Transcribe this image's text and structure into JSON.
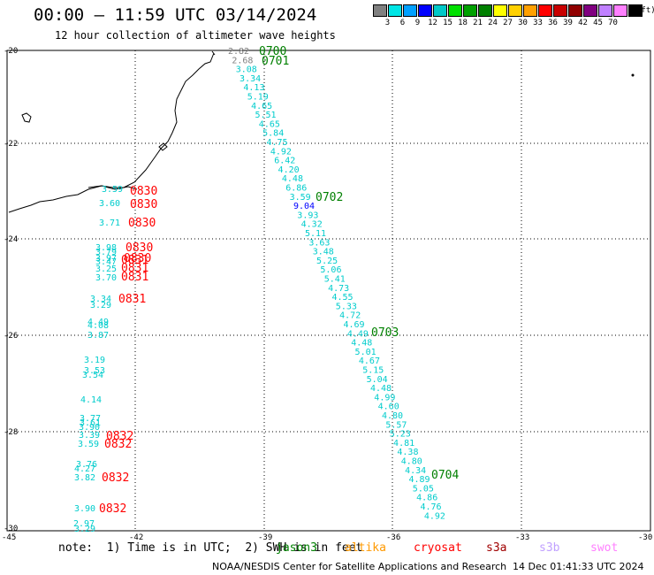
{
  "header": {
    "title": "00:00 – 11:59 UTC 03/14/2024",
    "subtitle": "12 hour collection of altimeter wave heights"
  },
  "legend": {
    "unit": "(ft)",
    "colors": [
      "#808080",
      "#00e5e5",
      "#00a0ff",
      "#0000ff",
      "#00c8c8",
      "#00e000",
      "#00a000",
      "#008000",
      "#ffff00",
      "#ffd000",
      "#ffa000",
      "#ff0000",
      "#c80000",
      "#900000",
      "#800080",
      "#c080ff",
      "#ff80ff",
      "#000000"
    ],
    "labels": [
      "3",
      "6",
      "9",
      "12",
      "15",
      "18",
      "21",
      "24",
      "27",
      "30",
      "33",
      "36",
      "39",
      "42",
      "45",
      "70"
    ]
  },
  "axes": {
    "y_labels": [
      "-20",
      "-22",
      "-24",
      "-26",
      "-28",
      "-30"
    ],
    "x_labels": [
      "-45",
      "-42",
      "-39",
      "-36",
      "-33",
      "-30"
    ]
  },
  "map_labels": {
    "pass_times": [
      {
        "text": "0700",
        "color": "#008000"
      },
      {
        "text": "0701",
        "color": "#008000"
      },
      {
        "text": "0702",
        "color": "#008000"
      },
      {
        "text": "0703",
        "color": "#008000"
      },
      {
        "text": "0704",
        "color": "#008000"
      },
      {
        "text": "0830",
        "color": "#ff0000"
      },
      {
        "text": "0830",
        "color": "#ff0000"
      },
      {
        "text": "0830",
        "color": "#ff0000"
      },
      {
        "text": "0830",
        "color": "#ff0000"
      },
      {
        "text": "0830",
        "color": "#ff0000"
      },
      {
        "text": "0831",
        "color": "#ff0000"
      },
      {
        "text": "0831",
        "color": "#ff0000"
      },
      {
        "text": "0831",
        "color": "#ff0000"
      },
      {
        "text": "0831",
        "color": "#ff0000"
      },
      {
        "text": "0832",
        "color": "#ff0000"
      },
      {
        "text": "0832",
        "color": "#ff0000"
      },
      {
        "text": "0832",
        "color": "#ff0000"
      },
      {
        "text": "0832",
        "color": "#ff0000"
      }
    ],
    "jason_track": [
      "2.82",
      "2.68",
      "3.08",
      "3.34",
      "4.13",
      "5.19",
      "4.65",
      "5.51",
      "4.65",
      "5.84",
      "4.75",
      "4.92",
      "6.42",
      "4.20",
      "4.48",
      "6.86",
      "3.59",
      "9.04",
      "3.93",
      "4.32",
      "5.11",
      "3.63",
      "3.48",
      "5.25",
      "5.06",
      "5.41",
      "4.73",
      "4.55",
      "5.33",
      "4.72",
      "4.69",
      "4.49",
      "4.48",
      "5.01",
      "4.67",
      "5.15",
      "5.04",
      "4.48",
      "4.99",
      "4.60",
      "4.80",
      "5.57",
      "5.23",
      "4.81",
      "4.38",
      "4.80",
      "4.34",
      "4.89",
      "5.05",
      "4.86",
      "4.76",
      "4.92"
    ],
    "cryosat_track": [
      "3.59",
      "3.60",
      "3.71",
      "3.98",
      "3.79",
      "3.97",
      "3.47",
      "3.25",
      "3.70",
      "3.34",
      "3.29",
      "4.49",
      "4.08",
      "3.87",
      "3.19",
      "3.53",
      "3.54",
      "4.14",
      "3.77",
      "3.61",
      "3.90",
      "3.39",
      "3.59",
      "3.76",
      "4.27",
      "3.82",
      "3.90",
      "2.97",
      "3.29"
    ]
  },
  "footer": {
    "note": "note:  1) Time is in UTC;  2) SWH is in feet",
    "satellites": [
      {
        "name": "jason3",
        "color": "#008000"
      },
      {
        "name": "altika",
        "color": "#ff9900"
      },
      {
        "name": "cryosat",
        "color": "#ff0000"
      },
      {
        "name": "s3a",
        "color": "#a00000"
      },
      {
        "name": "s3b",
        "color": "#c0a0ff"
      },
      {
        "name": "swot",
        "color": "#ff80ff"
      }
    ],
    "credit": "NOAA/NESDIS Center for Satellite Applications and Research",
    "timestamp": "14 Dec 01:41:33 UTC 2024"
  }
}
